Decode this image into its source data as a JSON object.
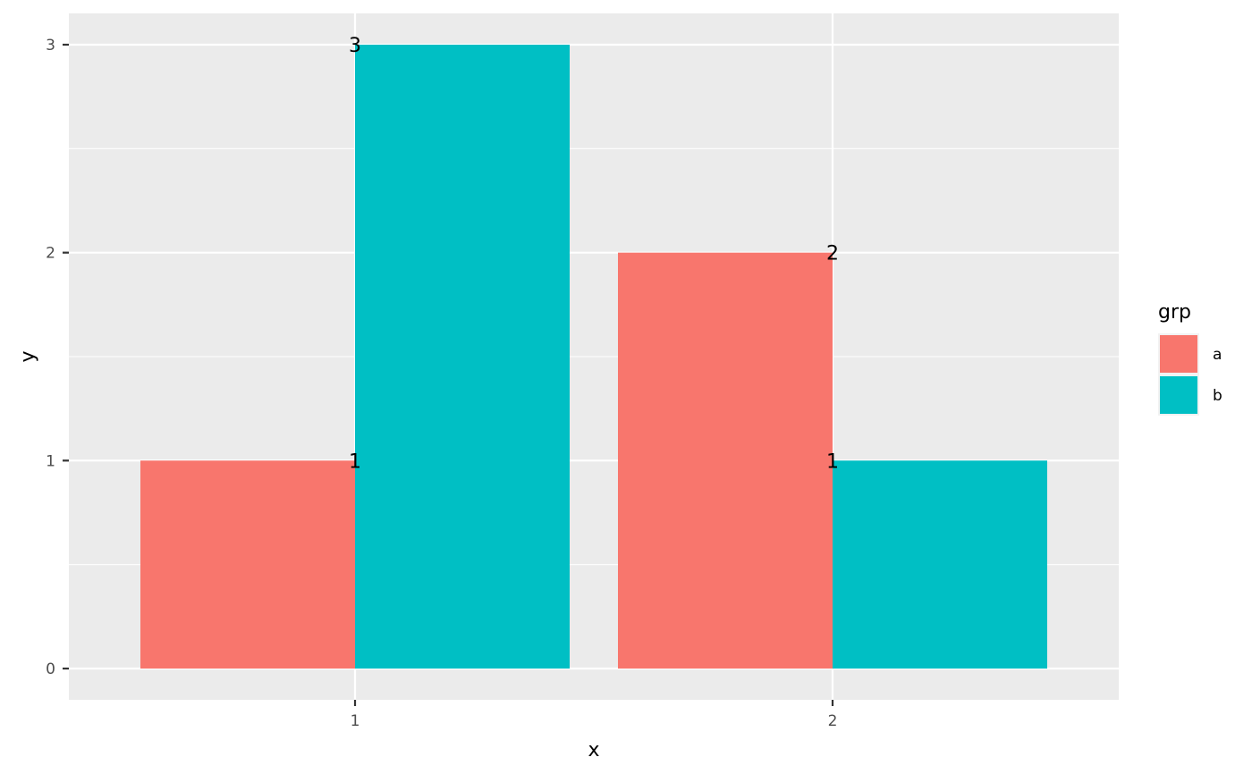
{
  "chart_data": {
    "type": "bar",
    "title": "",
    "xlabel": "x",
    "ylabel": "y",
    "categories": [
      "1",
      "2"
    ],
    "series": [
      {
        "name": "a",
        "color": "#F8766D",
        "values": [
          1,
          2
        ]
      },
      {
        "name": "b",
        "color": "#00BFC4",
        "values": [
          3,
          1
        ]
      }
    ],
    "ylim": [
      0,
      3
    ],
    "yticks": [
      "0",
      "1",
      "2",
      "3"
    ],
    "grid": true,
    "position": "dodge",
    "data_labels": true,
    "legend": {
      "title": "grp",
      "position": "right",
      "entries": [
        "a",
        "b"
      ]
    }
  },
  "colors": {
    "panel_bg": "#EBEBEB",
    "grid": "#FFFFFF",
    "tick": "#333333",
    "tick_text": "#4D4D4D"
  }
}
